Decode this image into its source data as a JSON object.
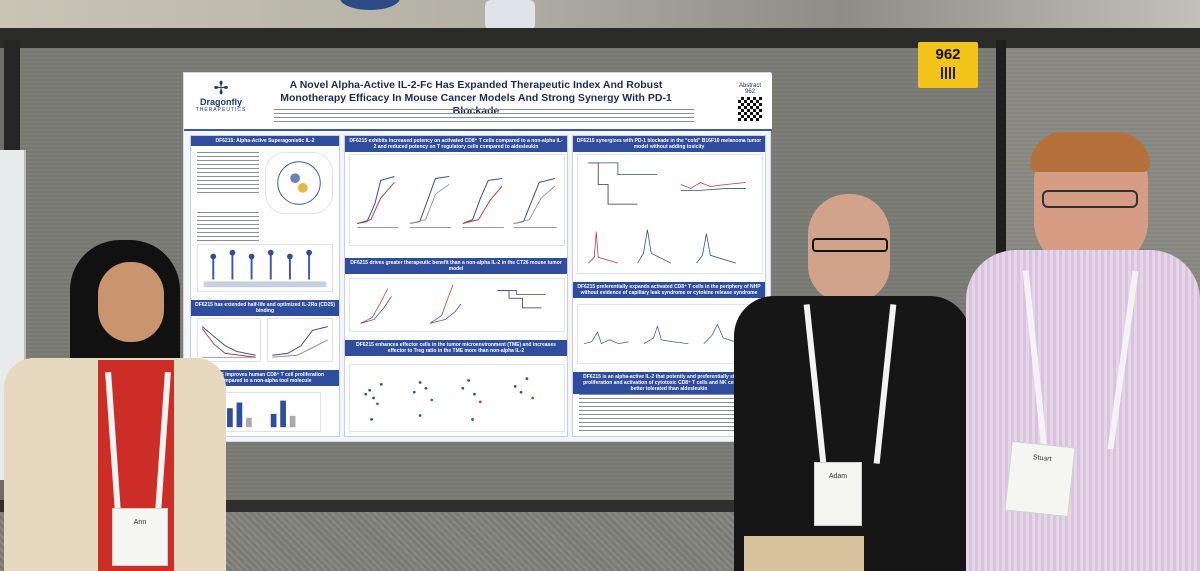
{
  "booth": {
    "number": "962"
  },
  "poster": {
    "logo": {
      "brand": "Dragonfly",
      "subtitle": "THERAPEUTICS"
    },
    "title": "A Novel Alpha-Active IL-2-Fc Has Expanded Therapeutic Index And Robust Monotherapy Efficacy In Mouse Cancer Models And Strong Synergy With PD-1 Blockade",
    "abstract_label": "Abstract",
    "abstract_number": "962",
    "sections": {
      "s1": "DF6215: Alpha-Active Superagonistic IL-2",
      "s2": "DF6215 has extended half-life and optimized IL-2Rα (CD25) binding",
      "s3": "DF6215 improves human CD8⁺ T cell proliferation compared to a non-alpha tool molecule",
      "s4": "DF6215 exhibits increased potency on activated CD8⁺ T cells compared to a non-alpha IL-2 and reduced potency on T regulatory cells compared to aldesleukin",
      "s5": "DF6215 drives greater therapeutic benefit than a non-alpha IL-2 in the CT26 mouse tumor model",
      "s6": "DF6215 enhances effector cells in the tumor microenvironment (TME) and increases effector to Treg ratio in the TME more than non-alpha IL-2",
      "s7": "DF6215 synergizes with PD-1 blockade in the “cold” B16F10 melanoma tumor model without adding toxicity",
      "s8": "DF6215 preferentially expands activated CD8⁺ T cells in the periphery of NHP without evidence of capillary leak syndrome or cytokine release syndrome",
      "s9": "DF6215 is an alpha-active IL-2 that potently and preferentially stimulates proliferation and activation of cytotoxic CD8⁺ T cells and NK cells and is better tolerated than aldesleukin"
    }
  },
  "people": {
    "left": {
      "badge_name": "Ann"
    },
    "middle": {
      "badge_name": "Adam"
    },
    "right": {
      "badge_name": "Stuart"
    }
  },
  "colors": {
    "poster_header_blue": "#2f4d9c",
    "booth_card_yellow": "#f2c318",
    "left_jacket": "#e8dcc4",
    "left_top": "#d2302a",
    "middle_shirt": "#161616",
    "right_shirt": "#e3d2e6"
  }
}
